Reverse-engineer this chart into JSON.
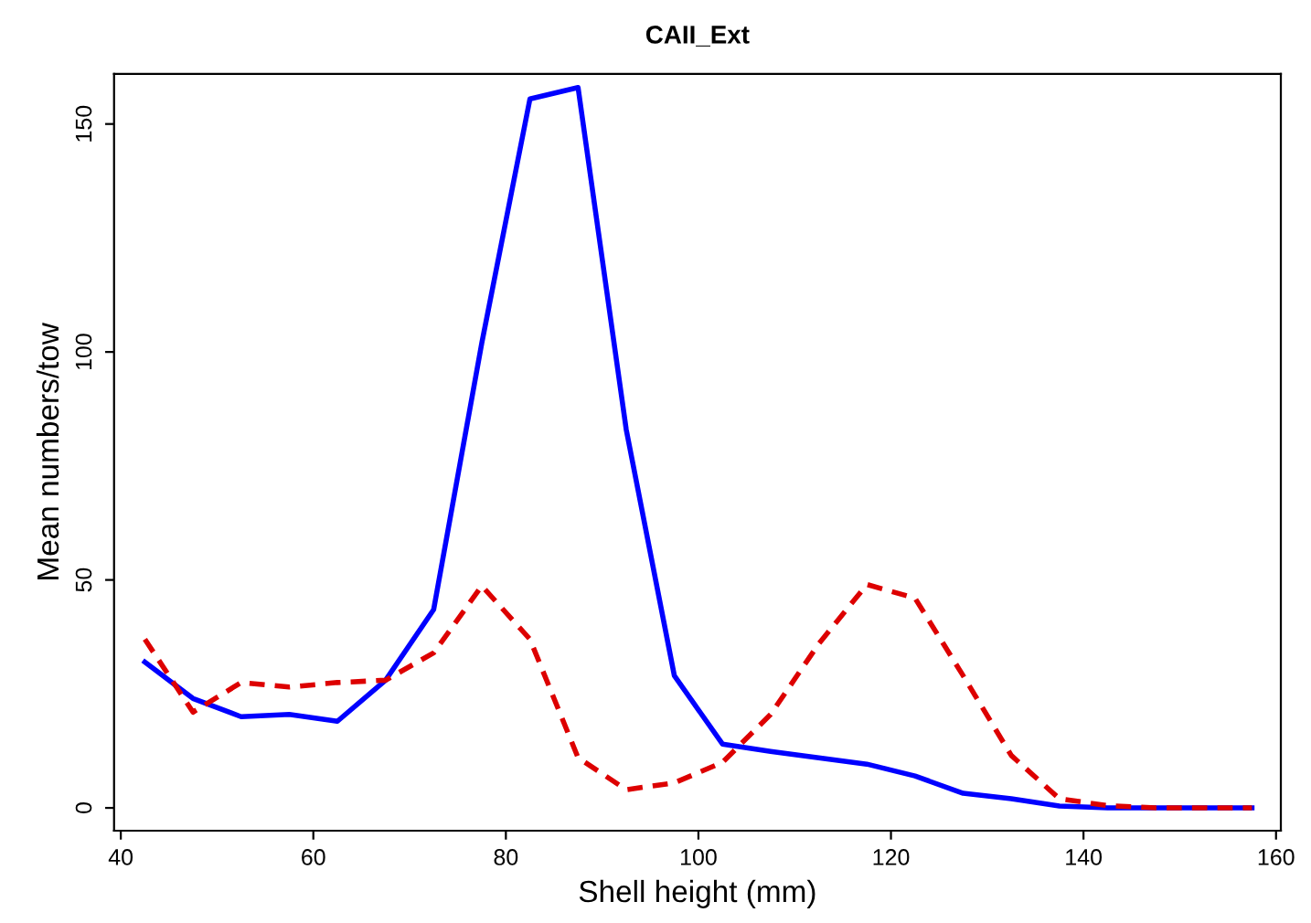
{
  "chart_data": {
    "type": "line",
    "title": "CAII_Ext",
    "xlabel": "Shell height (mm)",
    "ylabel": "Mean numbers/tow",
    "x": [
      42.5,
      47.5,
      52.5,
      57.5,
      62.5,
      67.5,
      72.5,
      77.5,
      82.5,
      87.5,
      92.5,
      97.5,
      102.5,
      107.5,
      112.5,
      117.5,
      122.5,
      127.5,
      132.5,
      137.5,
      142.5,
      147.5,
      152.5,
      157.5
    ],
    "series": [
      {
        "color": "#0000ff",
        "line_style": "solid",
        "values": [
          32,
          24,
          20,
          20.5,
          19,
          28,
          43.5,
          102,
          155.5,
          158,
          83,
          29,
          14,
          12.4,
          11,
          9.6,
          7,
          3.2,
          2,
          0.4,
          0,
          0,
          0,
          0
        ]
      },
      {
        "color": "#dd0000",
        "line_style": "dashed",
        "values": [
          37,
          21,
          27.5,
          26.5,
          27.5,
          28,
          34,
          48.7,
          37,
          11,
          4,
          5.5,
          10,
          20.5,
          36,
          49,
          46,
          29,
          11.5,
          2,
          0.5,
          0,
          0,
          0
        ]
      }
    ],
    "xlim": [
      39.3,
      160.5
    ],
    "ylim": [
      -5,
      161
    ],
    "xticks": [
      40,
      60,
      80,
      100,
      120,
      140,
      160
    ],
    "yticks": [
      0,
      50,
      100,
      150
    ],
    "grid": false,
    "legend": false,
    "marker": "none"
  }
}
